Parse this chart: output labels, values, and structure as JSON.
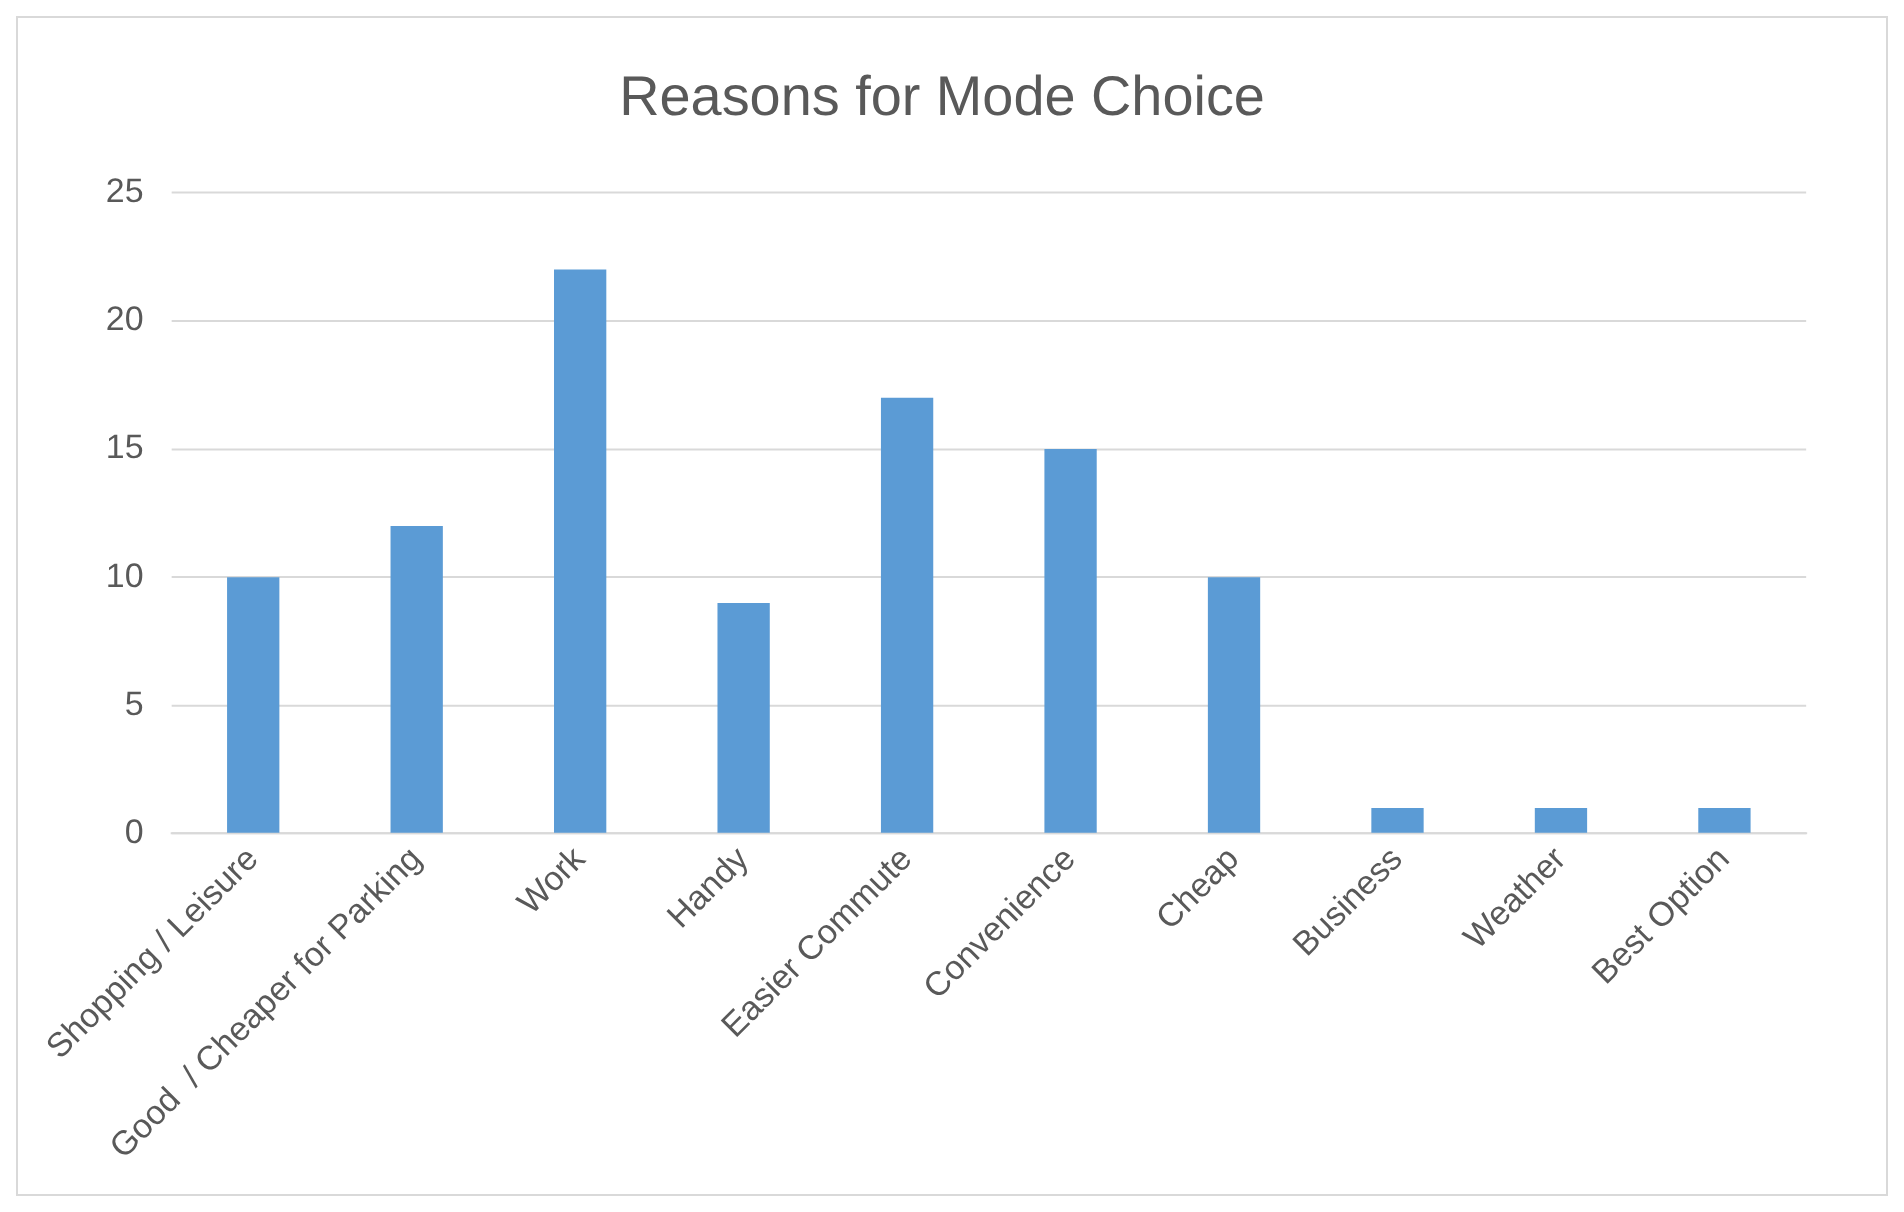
{
  "chart_data": {
    "type": "bar",
    "title": "Reasons for Mode Choice",
    "categories": [
      "Shopping / Leisure",
      "Good  / Cheaper for Parking",
      "Work",
      "Handy",
      "Easier Commute",
      "Convenience",
      "Cheap",
      "Business",
      "Weather",
      "Best Option"
    ],
    "values": [
      10,
      12,
      22,
      9,
      17,
      15,
      10,
      1,
      1,
      1
    ],
    "color": "#5b9bd5",
    "ylim": [
      0,
      25
    ],
    "yticks": [
      0,
      5,
      10,
      15,
      20,
      25
    ],
    "grid": "y",
    "legend": false
  }
}
